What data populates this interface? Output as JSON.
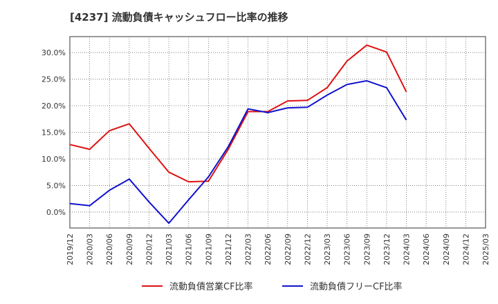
{
  "chart_data": {
    "type": "line",
    "title": "[4237]  流動負債キャッシュフロー比率の推移",
    "xlabel": "",
    "ylabel": "",
    "x": [
      "2019/12",
      "2020/03",
      "2020/06",
      "2020/09",
      "2020/12",
      "2021/03",
      "2021/06",
      "2021/09",
      "2021/12",
      "2022/03",
      "2022/06",
      "2022/09",
      "2022/12",
      "2023/03",
      "2023/06",
      "2023/09",
      "2023/12",
      "2024/03",
      "2024/06",
      "2024/09",
      "2024/12",
      "2025/03"
    ],
    "ylim": [
      -3,
      33
    ],
    "yticks": [
      0,
      5,
      10,
      15,
      20,
      25,
      30
    ],
    "ytick_labels": [
      "0.0%",
      "5.0%",
      "10.0%",
      "15.0%",
      "20.0%",
      "25.0%",
      "30.0%"
    ],
    "grid": true,
    "legend_position": "bottom",
    "series": [
      {
        "name": "流動負債営業CF比率",
        "color": "#dd1111",
        "values": [
          12.7,
          11.8,
          15.3,
          16.6,
          12.0,
          7.5,
          5.7,
          5.8,
          11.8,
          18.9,
          18.9,
          20.9,
          21.0,
          23.4,
          28.4,
          31.4,
          30.1,
          22.6,
          null,
          null,
          null,
          null
        ]
      },
      {
        "name": "流動負債フリーCF比率",
        "color": "#1111cc",
        "values": [
          1.6,
          1.2,
          4.1,
          6.2,
          1.9,
          -2.1,
          2.3,
          6.6,
          12.3,
          19.4,
          18.7,
          19.6,
          19.7,
          22.0,
          24.0,
          24.7,
          23.4,
          17.3,
          null,
          null,
          null,
          null
        ]
      }
    ]
  }
}
